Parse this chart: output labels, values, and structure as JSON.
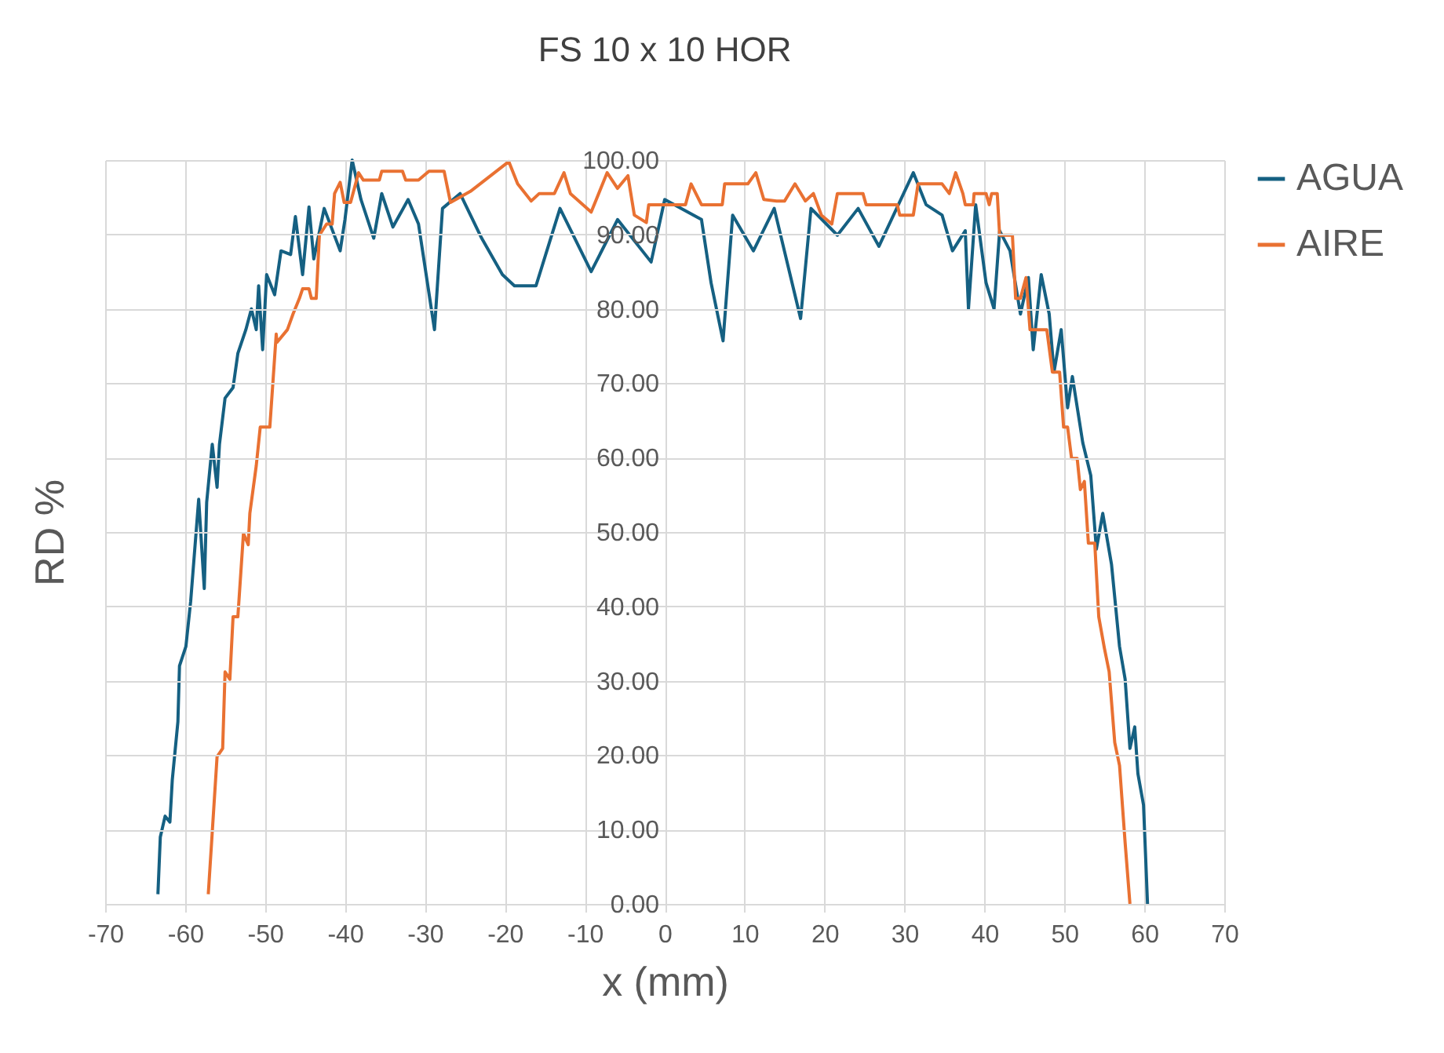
{
  "chart_data": {
    "type": "line",
    "title": "FS 10 x 10 HOR",
    "xlabel": "x (mm)",
    "ylabel": "RD %",
    "xlim": [
      -70,
      70
    ],
    "xticks": [
      -70,
      -60,
      -50,
      -40,
      -30,
      -20,
      -10,
      0,
      10,
      20,
      30,
      40,
      50,
      60,
      70
    ],
    "ylim": [
      0,
      100
    ],
    "yticks": [
      {
        "value": 0,
        "label": "0.00"
      },
      {
        "value": 10,
        "label": "10.00"
      },
      {
        "value": 20,
        "label": "20.00"
      },
      {
        "value": 30,
        "label": "30.00"
      },
      {
        "value": 40,
        "label": "40.00"
      },
      {
        "value": 50,
        "label": "50.00"
      },
      {
        "value": 60,
        "label": "60.00"
      },
      {
        "value": 70,
        "label": "70.00"
      },
      {
        "value": 80,
        "label": "80.00"
      },
      {
        "value": 90,
        "label": "90.00"
      },
      {
        "value": 100,
        "label": "100.00"
      }
    ],
    "grid": true,
    "legend": "right",
    "marker": "none",
    "line_style": "solid",
    "series": [
      {
        "name": "AGUA",
        "color": "#156082",
        "x": [
          -63.4,
          -63.1,
          -62.5,
          -61.9,
          -61.6,
          -60.9,
          -60.7,
          -59.9,
          -59.3,
          -58.3,
          -57.6,
          -57.3,
          -56.6,
          -56,
          -55.7,
          -55,
          -54,
          -53.4,
          -52.4,
          -51.7,
          -51.1,
          -50.8,
          -50.3,
          -49.8,
          -48.8,
          -48,
          -46.8,
          -46.2,
          -45.3,
          -44.5,
          -43.9,
          -42.6,
          -40.6,
          -40,
          -39.1,
          -38,
          -36.4,
          -35.4,
          -34,
          -32.1,
          -30.8,
          -28.8,
          -27.8,
          -25.6,
          -22.9,
          -20.3,
          -18.8,
          -16.1,
          -13.1,
          -9.2,
          -5.9,
          -1.7,
          0,
          4.6,
          5.8,
          7.3,
          8.5,
          11.1,
          13.7,
          17,
          18.3,
          21.6,
          24.2,
          26.8,
          31.1,
          32.7,
          34.7,
          36,
          37.6,
          38,
          38.9,
          40.2,
          41.2,
          41.9,
          43.2,
          44.5,
          45.5,
          46.1,
          47.1,
          48.1,
          48.7,
          49.6,
          50.4,
          51,
          52.3,
          53.3,
          54,
          54.8,
          55.9,
          56.9,
          57.6,
          58.2,
          58.8,
          59.2,
          59.9,
          60.4
        ],
        "values": [
          1.3,
          9,
          11.8,
          11,
          16.7,
          24.5,
          32,
          34.6,
          40.7,
          54.4,
          42.4,
          54,
          61.8,
          56,
          61.8,
          68,
          69.4,
          74,
          77.2,
          80,
          77.2,
          83.1,
          74.5,
          84.6,
          81.9,
          87.8,
          87.3,
          92.4,
          84.6,
          93.7,
          86.7,
          93.5,
          87.8,
          92,
          100,
          94.7,
          89.5,
          95.5,
          91,
          94.7,
          91.4,
          77.2,
          93.5,
          95.5,
          89.5,
          84.6,
          83.1,
          83.1,
          93.5,
          85,
          92,
          86.3,
          94.7,
          92,
          83.5,
          75.7,
          92.6,
          87.8,
          93.5,
          78.7,
          93.5,
          89.9,
          93.5,
          88.4,
          98.3,
          94,
          92.6,
          87.8,
          90.5,
          80,
          94,
          83.5,
          80,
          90.5,
          87.8,
          79.3,
          84.2,
          74.5,
          84.6,
          79.3,
          71.5,
          77.2,
          66.7,
          70.9,
          62,
          57.6,
          47.7,
          52.5,
          45.6,
          34.6,
          30.2,
          20.9,
          23.8,
          17.5,
          13.3,
          0
        ]
      },
      {
        "name": "AIRE",
        "color": "#e97132",
        "x": [
          -57.1,
          -56.6,
          -56,
          -55.3,
          -55,
          -54.4,
          -54,
          -53.4,
          -52.7,
          -52.1,
          -51.9,
          -51.1,
          -50.6,
          -49.4,
          -48.6,
          -48.5,
          -47.2,
          -46.5,
          -45.7,
          -45.3,
          -44.5,
          -44.2,
          -43.6,
          -43.2,
          -42.3,
          -41.6,
          -41.3,
          -40.6,
          -40.1,
          -39.3,
          -38.3,
          -37.7,
          -35.7,
          -35.4,
          -32.8,
          -32.4,
          -30.8,
          -29.5,
          -27.6,
          -26.8,
          -24.3,
          -21.3,
          -19.5,
          -18.4,
          -16.7,
          -15.7,
          -13.8,
          -12.6,
          -11.8,
          -9.2,
          -7.2,
          -5.9,
          -4.6,
          -3.8,
          -2.3,
          -2,
          2.6,
          3.3,
          4.6,
          7.2,
          7.5,
          10.4,
          11.4,
          12.4,
          14,
          15,
          16.3,
          17.6,
          18.6,
          19.6,
          20.9,
          21.6,
          24.8,
          25.2,
          29.1,
          29.4,
          31.1,
          31.7,
          34.7,
          35.6,
          36.4,
          37.3,
          37.6,
          38.6,
          38.7,
          40.2,
          40.6,
          40.9,
          41.6,
          41.9,
          43.5,
          43.9,
          44.5,
          45.2,
          45.7,
          47.8,
          48.5,
          49.4,
          49.9,
          50.4,
          50.9,
          51.6,
          52,
          52.5,
          53,
          53.8,
          54.3,
          55,
          55.6,
          56.3,
          56.9,
          57.6,
          58.2
        ],
        "values": [
          1.3,
          9.7,
          19.8,
          20.9,
          31.2,
          30.2,
          38.6,
          38.6,
          49.8,
          48.3,
          52.5,
          58.9,
          64.1,
          64.1,
          76.6,
          75.5,
          77.2,
          79.3,
          81.4,
          82.7,
          82.7,
          81.4,
          81.4,
          89.9,
          91.4,
          91.4,
          95.5,
          97,
          94.3,
          94.3,
          98.3,
          97.3,
          97.3,
          98.5,
          98.5,
          97.3,
          97.3,
          98.5,
          98.5,
          94.3,
          95.8,
          98.3,
          99.8,
          96.8,
          94.5,
          95.5,
          95.5,
          98.3,
          95.5,
          93,
          98.3,
          96.2,
          97.9,
          92.6,
          91.6,
          94,
          94,
          96.8,
          94,
          94,
          96.8,
          96.8,
          98.3,
          94.7,
          94.5,
          94.5,
          96.8,
          94.5,
          95.5,
          92.6,
          91.4,
          95.5,
          95.5,
          94,
          94,
          92.6,
          92.6,
          96.8,
          96.8,
          95.5,
          98.3,
          95.5,
          94,
          94,
          95.5,
          95.5,
          94,
          95.5,
          95.5,
          89.9,
          89.9,
          81.4,
          81.4,
          84.2,
          77.2,
          77.2,
          71.5,
          71.5,
          64.1,
          64.1,
          59.9,
          59.9,
          55.7,
          56.8,
          48.5,
          48.5,
          38.6,
          34.4,
          31.2,
          21.7,
          18.6,
          8.2,
          0
        ]
      }
    ]
  }
}
